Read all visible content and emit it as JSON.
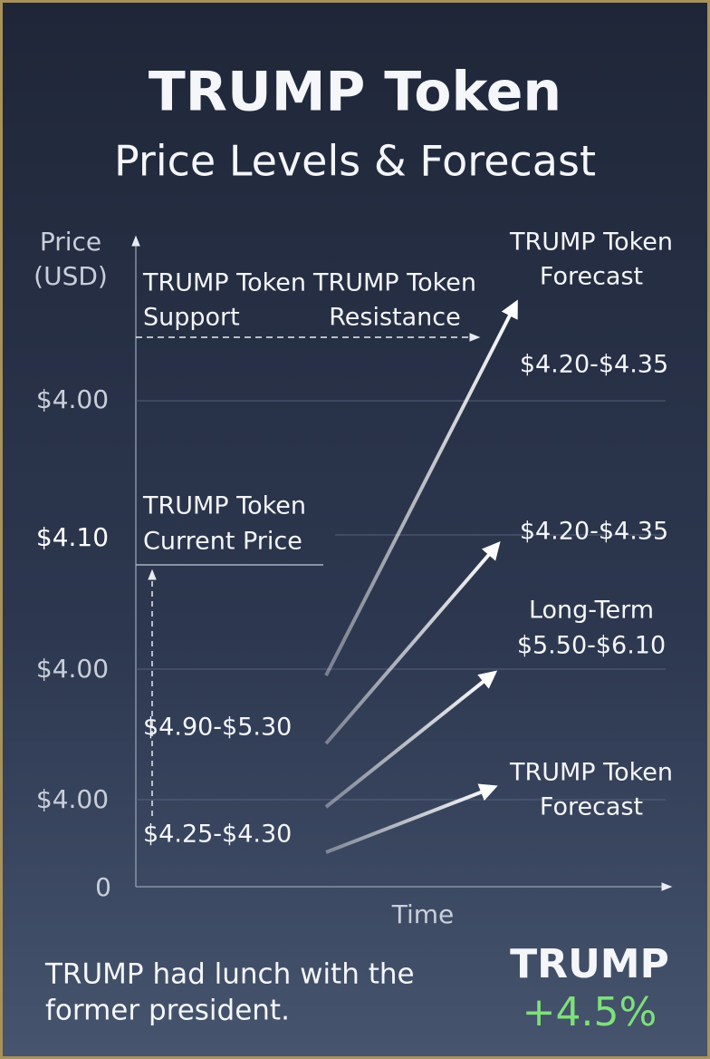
{
  "header": {
    "title": "TRUMP Token",
    "subtitle": "Price Levels & Forecast"
  },
  "axis": {
    "y_label": [
      "Price",
      "(USD)"
    ],
    "x_label": "Time",
    "ticks": [
      "$4.00",
      "$4.10",
      "$4.00",
      "$4.00",
      "0"
    ]
  },
  "labels": {
    "support": [
      "TRUMP Token",
      "Support"
    ],
    "resistance": [
      "TRUMP Token",
      "Resistance"
    ],
    "forecast_top": [
      "TRUMP Token",
      "Forecast"
    ],
    "forecast_top_range": "$4.20-$4.35",
    "current_price": [
      "TRUMP Token",
      "Current Price"
    ],
    "mid_range": "$4.20-$4.35",
    "long_term": [
      "Long-Term",
      "$5.50-$6.10"
    ],
    "forecast_bottom": [
      "TRUMP Token",
      "Forecast"
    ],
    "range_upper": "$4.90-$5.30",
    "range_lower": "$4.25-$4.30"
  },
  "footer": {
    "note": [
      "TRUMP had lunch with the",
      "former president."
    ],
    "ticker": "TRUMP",
    "change": "+4.5%"
  }
}
